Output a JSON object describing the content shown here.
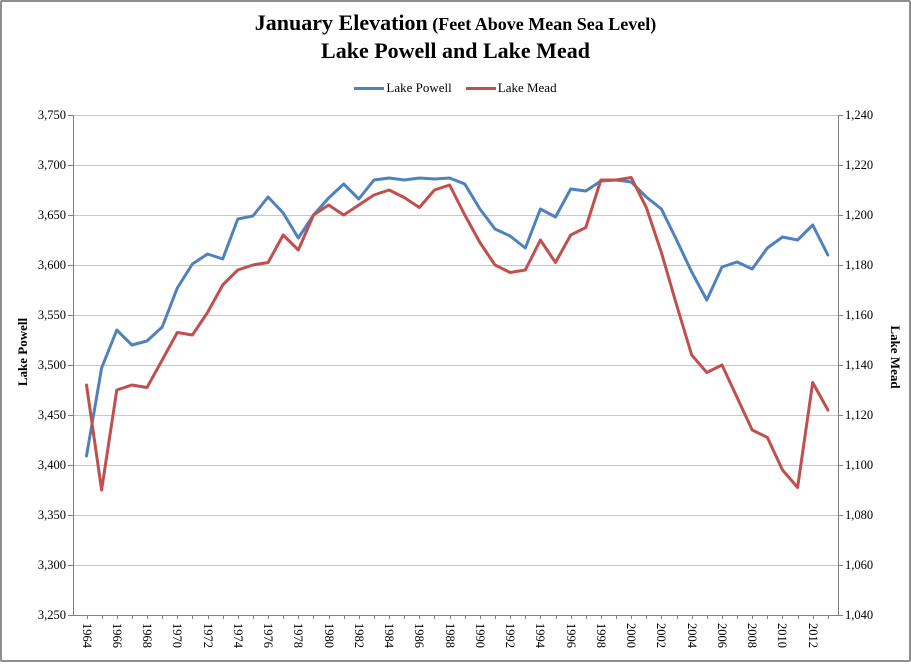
{
  "window": {
    "border_color": "#8f8f8f",
    "background": "#ffffff"
  },
  "title": {
    "line1_main": "January Elevation",
    "line1_sub": " (Feet Above Mean Sea Level)",
    "line2": "Lake Powell and Lake Mead"
  },
  "legend": {
    "position": "top",
    "items": [
      "Lake Powell",
      "Lake Mead"
    ]
  },
  "colors": {
    "lake_powell_line": "#4F81BD",
    "lake_mead_line": "#C0504D",
    "gridline": "#c9c9c9",
    "axis_line": "#808080",
    "text": "#000000"
  },
  "chart_data": {
    "type": "line",
    "title": "January Elevation (Feet Above Mean Sea Level) — Lake Powell and Lake Mead",
    "grid": true,
    "legend_position": "top",
    "x": [
      1964,
      1965,
      1966,
      1967,
      1968,
      1969,
      1970,
      1971,
      1972,
      1973,
      1974,
      1975,
      1976,
      1977,
      1978,
      1979,
      1980,
      1981,
      1982,
      1983,
      1984,
      1985,
      1986,
      1987,
      1988,
      1989,
      1990,
      1991,
      1992,
      1993,
      1994,
      1995,
      1996,
      1997,
      1998,
      1999,
      2000,
      2001,
      2002,
      2003,
      2004,
      2005,
      2006,
      2007,
      2008,
      2009,
      2010,
      2011,
      2012,
      2013
    ],
    "x_tick_labels": [
      "1964",
      "1966",
      "1968",
      "1970",
      "1972",
      "1974",
      "1976",
      "1978",
      "1980",
      "1982",
      "1984",
      "1986",
      "1988",
      "1990",
      "1992",
      "1994",
      "1996",
      "1998",
      "2000",
      "2002",
      "2004",
      "2006",
      "2008",
      "2010",
      "2012"
    ],
    "left_axis": {
      "title": "Lake Powell",
      "min": 3250,
      "max": 3750,
      "step": 50,
      "tick_labels": [
        "3,750",
        "3,700",
        "3,650",
        "3,600",
        "3,550",
        "3,500",
        "3,450",
        "3,400",
        "3,350",
        "3,300",
        "3,250"
      ]
    },
    "right_axis": {
      "title": "Lake Mead",
      "min": 1040,
      "max": 1240,
      "step": 20,
      "tick_labels": [
        "1,240",
        "1,220",
        "1,200",
        "1,180",
        "1,160",
        "1,140",
        "1,120",
        "1,100",
        "1,080",
        "1,060",
        "1,040"
      ]
    },
    "series": [
      {
        "name": "Lake Powell",
        "color": "#4F81BD",
        "axis": "left",
        "values": [
          3409,
          3497,
          3535,
          3520,
          3524,
          3538,
          3577,
          3601,
          3611,
          3606,
          3646,
          3649,
          3668,
          3652,
          3627,
          3650,
          3667,
          3681,
          3666,
          3685,
          3687,
          3685,
          3687,
          3686,
          3687,
          3681,
          3656,
          3636,
          3629,
          3617,
          3656,
          3648,
          3676,
          3674,
          3684,
          3685,
          3683,
          3668,
          3656,
          3625,
          3593,
          3565,
          3598,
          3603,
          3596,
          3617,
          3628,
          3625,
          3640,
          3610
        ]
      },
      {
        "name": "Lake Mead",
        "color": "#C0504D",
        "axis": "right",
        "values": [
          1132,
          1090,
          1130,
          1132,
          1131,
          1142,
          1153,
          1152,
          1161,
          1172,
          1178,
          1180,
          1181,
          1192,
          1186,
          1200,
          1204,
          1200,
          1204,
          1208,
          1210,
          1207,
          1203,
          1210,
          1212,
          1200,
          1189,
          1180,
          1177,
          1178,
          1190,
          1181,
          1192,
          1195,
          1214,
          1214,
          1215,
          1203,
          1185,
          1164,
          1144,
          1137,
          1140,
          1127,
          1114,
          1111,
          1098,
          1091,
          1133,
          1122
        ]
      }
    ]
  }
}
